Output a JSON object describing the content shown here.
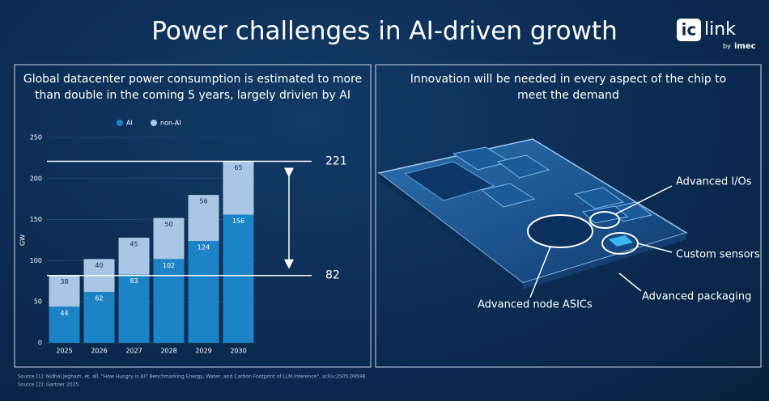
{
  "title": "Power challenges in AI-driven growth",
  "logo": {
    "mark": "ic",
    "name": "link",
    "by": "by",
    "brand": "imec"
  },
  "chart_data": {
    "type": "bar",
    "stacked": true,
    "title": "Global datacenter power consumption is estimated to more than double in the coming 5 years, largely drivien by AI",
    "categories": [
      "2025",
      "2026",
      "2027",
      "2028",
      "2029",
      "2030"
    ],
    "series": [
      {
        "name": "AI",
        "color": "#1c84c6",
        "label_color": "#ffffff",
        "values": [
          44,
          62,
          83,
          102,
          124,
          156
        ]
      },
      {
        "name": "non-AI",
        "color": "#a8c6e6",
        "label_color": "#0b2547",
        "values": [
          38,
          40,
          45,
          50,
          56,
          65
        ]
      }
    ],
    "ylabel": "GW",
    "ylim": [
      0,
      250
    ],
    "yticks": [
      0,
      50,
      100,
      150,
      200,
      250
    ],
    "grid": true,
    "reference_lines": [
      221,
      82
    ]
  },
  "right_panel": {
    "title": "Innovation will be needed in every aspect of the chip to meet the demand",
    "callouts": [
      "Advanced I/Os",
      "Custom sensors",
      "Advanced packaging",
      "Advanced node ASICs"
    ]
  },
  "sources": [
    "Source [1]: Nidhal Jegham, et. all, \"How Hungry is AI? Benchmarking Energy, Water, and Carbon Footprint of LLM Inference\", arXiv:2505.09598",
    "Source [2]: Gartner 2025"
  ]
}
